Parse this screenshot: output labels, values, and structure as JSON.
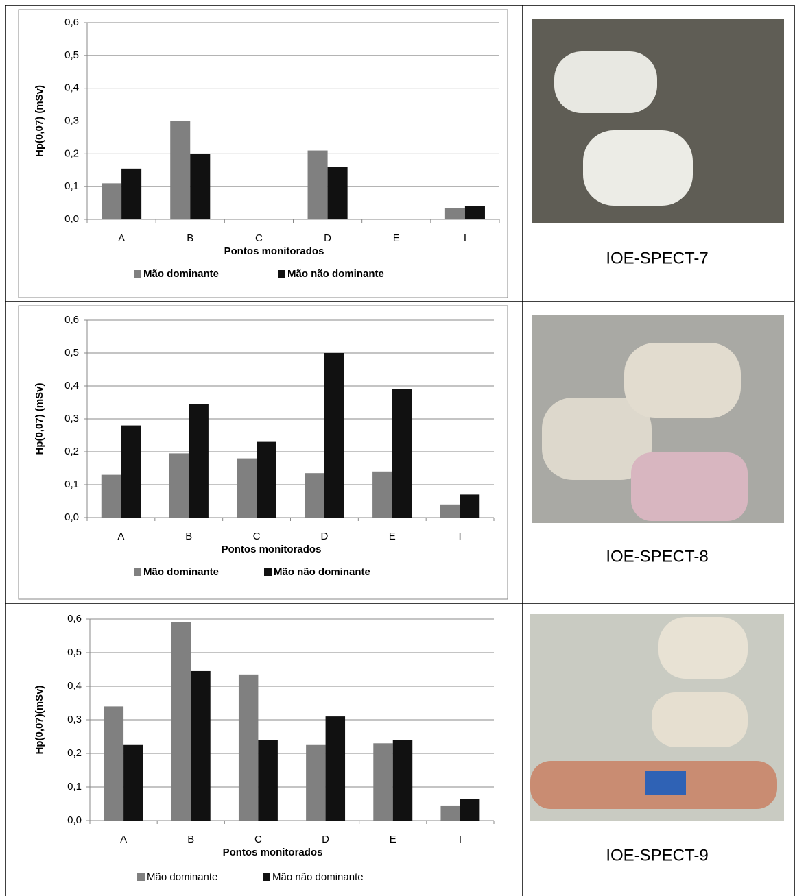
{
  "chart_data": [
    {
      "type": "bar",
      "ylabel": "Hp(0,07) (mSv)",
      "xlabel": "Pontos monitorados",
      "categories": [
        "A",
        "B",
        "C",
        "D",
        "E",
        "I"
      ],
      "series": [
        {
          "name": "Mão dominante",
          "color": "#808080",
          "values": [
            0.11,
            0.3,
            0,
            0.21,
            0,
            0.035
          ]
        },
        {
          "name": "Mão não dominante",
          "color": "#111111",
          "values": [
            0.155,
            0.2,
            0,
            0.16,
            0,
            0.04
          ]
        }
      ],
      "ylim": [
        0,
        0.6
      ],
      "yticks": [
        {
          "value": 0,
          "label": "0,0"
        },
        {
          "value": 0.1,
          "label": "0,1"
        },
        {
          "value": 0.2,
          "label": "0,2"
        },
        {
          "value": 0.3,
          "label": "0,3"
        },
        {
          "value": 0.4,
          "label": "0,4"
        },
        {
          "value": 0.5,
          "label": "0,5"
        },
        {
          "value": 0.6,
          "label": "0,6"
        }
      ],
      "grid": true,
      "legend": "bottom"
    },
    {
      "type": "bar",
      "ylabel": "Hp(0,07) (mSv)",
      "xlabel": "Pontos monitorados",
      "categories": [
        "A",
        "B",
        "C",
        "D",
        "E",
        "I"
      ],
      "series": [
        {
          "name": "Mão dominante",
          "color": "#808080",
          "values": [
            0.13,
            0.195,
            0.18,
            0.135,
            0.14,
            0.04
          ]
        },
        {
          "name": "Mão não dominante",
          "color": "#111111",
          "values": [
            0.28,
            0.345,
            0.23,
            0.5,
            0.39,
            0.07
          ]
        }
      ],
      "ylim": [
        0,
        0.6
      ],
      "yticks": [
        {
          "value": 0,
          "label": "0,0"
        },
        {
          "value": 0.1,
          "label": "0,1"
        },
        {
          "value": 0.2,
          "label": "0,2"
        },
        {
          "value": 0.3,
          "label": "0,3"
        },
        {
          "value": 0.4,
          "label": "0,4"
        },
        {
          "value": 0.5,
          "label": "0,5"
        },
        {
          "value": 0.6,
          "label": "0,6"
        }
      ],
      "grid": true,
      "legend": "bottom"
    },
    {
      "type": "bar",
      "ylabel": "Hp(0,07)(mSv)",
      "xlabel": "Pontos monitorados",
      "categories": [
        "A",
        "B",
        "C",
        "D",
        "E",
        "I"
      ],
      "series": [
        {
          "name": "Mão dominante",
          "color": "#808080",
          "values": [
            0.34,
            0.59,
            0.435,
            0.225,
            0.23,
            0.045
          ]
        },
        {
          "name": "Mão não dominante",
          "color": "#111111",
          "values": [
            0.225,
            0.445,
            0.24,
            0.31,
            0.24,
            0.065
          ]
        }
      ],
      "ylim": [
        0,
        0.6
      ],
      "yticks": [
        {
          "value": 0,
          "label": "0,0"
        },
        {
          "value": 0.1,
          "label": "0,1"
        },
        {
          "value": 0.2,
          "label": "0,2"
        },
        {
          "value": 0.3,
          "label": "0,3"
        },
        {
          "value": 0.4,
          "label": "0,4"
        },
        {
          "value": 0.5,
          "label": "0,5"
        },
        {
          "value": 0.6,
          "label": "0,6"
        }
      ],
      "grid": true,
      "legend": "bottom"
    }
  ],
  "photos": [
    {
      "caption": "IOE-SPECT-7"
    },
    {
      "caption": "IOE-SPECT-8"
    },
    {
      "caption": "IOE-SPECT-9"
    }
  ]
}
